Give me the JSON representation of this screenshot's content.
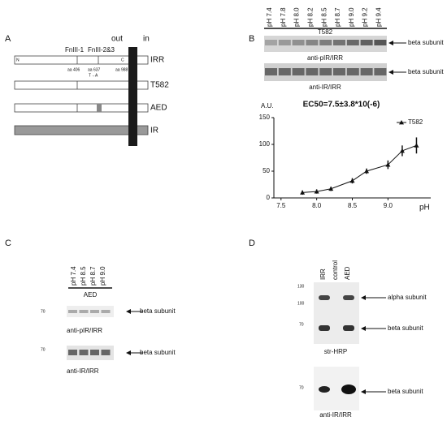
{
  "panel_a": {
    "label": "A",
    "out": "out",
    "in": "in",
    "domains": [
      "FnIII-1",
      "FnIII-2&3"
    ],
    "terminals": [
      "N",
      "C"
    ],
    "residues": [
      "aa 406",
      "aa 637",
      "aa 988"
    ],
    "mutation": "T→A",
    "constructs": [
      "IRR",
      "T582",
      "AED",
      "IR"
    ]
  },
  "panel_b": {
    "label": "B",
    "lanes": [
      "pH 7.4",
      "pH 7.8",
      "pH 8.0",
      "pH 8.2",
      "pH 8.5",
      "pH 8.7",
      "pH 9.0",
      "pH 9.2",
      "pH 9.4"
    ],
    "construct": "T582",
    "blots": [
      {
        "band": "beta subunit",
        "antibody": "anti-pIR/IRR"
      },
      {
        "band": "beta subunit",
        "antibody": "anti-IR/IRR"
      }
    ]
  },
  "chart_data": {
    "type": "line",
    "title": "EC50=7.5±3.8*10(-6)",
    "y_label": "A.U.",
    "x_label": "pH",
    "series": [
      {
        "name": "T582",
        "color": "#111111",
        "x": [
          7.8,
          8.0,
          8.2,
          8.5,
          8.7,
          9.0,
          9.2,
          9.4
        ],
        "values": [
          10,
          12,
          17,
          32,
          50,
          62,
          88,
          98
        ],
        "errors": [
          4,
          4,
          4,
          5,
          5,
          8,
          10,
          15
        ]
      }
    ],
    "xlim": [
      7.4,
      9.6
    ],
    "xticks": [
      7.5,
      {
        "value": 8.0,
        "label": "8.0"
      },
      8.5,
      {
        "value": 9.0,
        "label": "9.0"
      }
    ],
    "ylim": [
      0,
      150
    ],
    "yticks": [
      0,
      50,
      100,
      150
    ],
    "legend": "upper right",
    "grid": false
  },
  "panel_c": {
    "label": "C",
    "lanes": [
      "pH 7.4",
      "pH 8.5",
      "pH 8.7",
      "pH 9.0"
    ],
    "construct": "AED",
    "blots": [
      {
        "marker": "70",
        "band": "beta subunit",
        "antibody": "anti-pIR/IRR"
      },
      {
        "marker": "70",
        "band": "beta subunit",
        "antibody": "anti-IR/IRR"
      }
    ]
  },
  "panel_d": {
    "label": "D",
    "lanes": [
      "IRR",
      "control",
      "AED"
    ],
    "markers": [
      "130",
      "100",
      "70"
    ],
    "bands": [
      "alpha subunit",
      "beta subunit"
    ],
    "antibody": "str-HRP",
    "blot2": {
      "marker": "70",
      "band": "beta subunit",
      "antibody": "anti-IR/IRR"
    }
  }
}
